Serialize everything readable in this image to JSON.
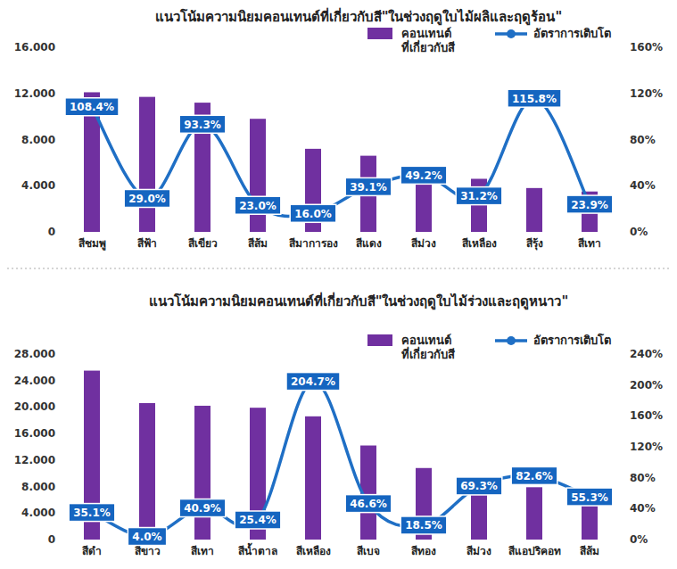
{
  "chart_data": [
    {
      "type": "bar",
      "title": "แนวโน้มความนิยมคอนเทนต์ที่เกี่ยวกับสี\"ในช่วงฤดูใบไม้ผลิและฤดูร้อน\"",
      "categories": [
        "สีชมพู",
        "สีฟ้า",
        "สีเขียว",
        "สีส้ม",
        "สีมาการอง",
        "สีแดง",
        "สีม่วง",
        "สีเหลือง",
        "สีรุ้ง",
        "สีเทา"
      ],
      "series": [
        {
          "name": "คอนเทนต์ ที่เกี่ยวกับสี",
          "type": "bar",
          "color": "#7030a0",
          "values": [
            12100,
            11700,
            11200,
            9800,
            7200,
            6600,
            4900,
            4600,
            3800,
            3500
          ]
        },
        {
          "name": "อัตราการเติบโต",
          "type": "line",
          "color": "#1f6fc5",
          "axis": "y2",
          "marker": "none",
          "data_labels": true,
          "values": [
            108.4,
            29.0,
            93.3,
            23.0,
            16.0,
            39.1,
            49.2,
            31.2,
            115.8,
            23.9
          ],
          "value_labels": [
            "108.4%",
            "29.0%",
            "93.3%",
            "23.0%",
            "16.0%",
            "39.1%",
            "49.2%",
            "31.2%",
            "115.8%",
            "23.9%"
          ]
        }
      ],
      "ylim": [
        0,
        16000
      ],
      "yticks": [
        0,
        {
          "value": 4000,
          "label": "4.000"
        },
        {
          "value": 8000,
          "label": "8.000"
        },
        {
          "value": 12000,
          "label": "12.000"
        },
        {
          "value": 16000,
          "label": "16.000"
        }
      ],
      "y2lim": [
        0,
        160
      ],
      "y2ticks": [
        {
          "value": 0,
          "label": "0%"
        },
        {
          "value": 40,
          "label": "40%"
        },
        {
          "value": 80,
          "label": "80%"
        },
        {
          "value": 120,
          "label": "120%"
        },
        {
          "value": 160,
          "label": "160%"
        }
      ],
      "grid": false,
      "legend": "top-right"
    },
    {
      "type": "bar",
      "title": "แนวโน้มความนิยมคอนเทนต์ที่เกี่ยวกับสี\"ในช่วงฤดูใบไม้ร่วงและฤดูหนาว\"",
      "categories": [
        "สีดำ",
        "สีขาว",
        "สีเทา",
        "สีน้ำตาล",
        "สีเหลือง",
        "สีเบจ",
        "สีทอง",
        "สีม่วง",
        "สีแอปริคอท",
        "สีส้ม"
      ],
      "series": [
        {
          "name": "คอนเทนต์ ที่เกี่ยวกับสี",
          "type": "bar",
          "color": "#7030a0",
          "values": [
            25500,
            20600,
            20200,
            19900,
            18600,
            14200,
            10800,
            8300,
            7900,
            7700
          ]
        },
        {
          "name": "อัตราการเติบโต",
          "type": "line",
          "color": "#1f6fc5",
          "axis": "y2",
          "marker": "none",
          "data_labels": true,
          "values": [
            35.1,
            4.0,
            40.9,
            25.4,
            204.7,
            46.6,
            18.5,
            69.3,
            82.6,
            55.3
          ],
          "value_labels": [
            "35.1%",
            "4.0%",
            "40.9%",
            "25.4%",
            "204.7%",
            "46.6%",
            "18.5%",
            "69.3%",
            "82.6%",
            "55.3%"
          ]
        }
      ],
      "ylim": [
        0,
        28000
      ],
      "yticks": [
        0,
        {
          "value": 4000,
          "label": "4.000"
        },
        {
          "value": 8000,
          "label": "8.000"
        },
        {
          "value": 12000,
          "label": "12.000"
        },
        {
          "value": 16000,
          "label": "16.000"
        },
        {
          "value": 20000,
          "label": "20.000"
        },
        {
          "value": 24000,
          "label": "24.000"
        },
        {
          "value": 28000,
          "label": "28.000"
        }
      ],
      "y2lim": [
        0,
        240
      ],
      "y2ticks": [
        {
          "value": 0,
          "label": "0%"
        },
        {
          "value": 40,
          "label": "40%"
        },
        {
          "value": 80,
          "label": "80%"
        },
        {
          "value": 120,
          "label": "120%"
        },
        {
          "value": 160,
          "label": "160%"
        },
        {
          "value": 200,
          "label": "200%"
        },
        {
          "value": 240,
          "label": "240%"
        }
      ],
      "grid": false,
      "legend": "top-right"
    }
  ]
}
